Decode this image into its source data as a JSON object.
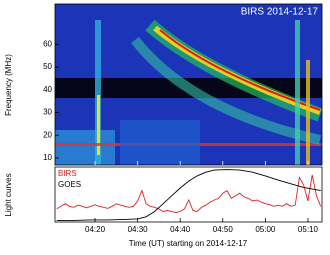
{
  "chart_data": {
    "type": "spectrogram-lightcurve",
    "title": "BIRS 2014-12-17",
    "ylabel": "Frequency (MHz)",
    "ylim": [
      6.9,
      77.7
    ],
    "yticks": [
      10,
      20,
      30,
      40,
      50,
      60
    ],
    "xlabel": "Time (UT) starting on 2014-12-17",
    "xlim": [
      250.6,
      313.3
    ],
    "xticks": [
      {
        "value": 260,
        "label": "04:20"
      },
      {
        "value": 270,
        "label": "04:30"
      },
      {
        "value": 280,
        "label": "04:40"
      },
      {
        "value": 290,
        "label": "04:50"
      },
      {
        "value": 300,
        "label": "05:00"
      },
      {
        "value": 310,
        "label": "05:10"
      }
    ],
    "lightcurve": {
      "ylabel": "Light curves",
      "ylim": [
        0,
        1.05
      ],
      "series": [
        {
          "name": "BIRS",
          "color": "#e02020",
          "x": [
            251,
            252,
            253,
            254,
            255,
            256,
            257,
            258,
            259,
            260,
            261,
            262,
            263,
            264,
            265,
            266,
            267,
            268,
            269,
            270,
            271,
            272,
            273,
            274,
            275,
            276,
            277,
            278,
            279,
            280,
            281,
            282,
            283,
            284,
            285,
            286,
            287,
            288,
            289,
            290,
            291,
            292,
            293,
            294,
            295,
            296,
            297,
            298,
            299,
            300,
            301,
            302,
            303,
            304,
            305,
            306,
            307,
            308,
            309,
            310,
            311,
            312,
            313
          ],
          "values": [
            0.25,
            0.3,
            0.35,
            0.3,
            0.28,
            0.32,
            0.3,
            0.27,
            0.3,
            0.33,
            0.3,
            0.28,
            0.26,
            0.3,
            0.35,
            0.32,
            0.3,
            0.28,
            0.3,
            0.4,
            0.6,
            0.35,
            0.3,
            0.28,
            0.25,
            0.2,
            0.22,
            0.2,
            0.18,
            0.2,
            0.25,
            0.42,
            0.22,
            0.2,
            0.28,
            0.32,
            0.38,
            0.42,
            0.45,
            0.55,
            0.6,
            0.45,
            0.5,
            0.55,
            0.48,
            0.45,
            0.4,
            0.42,
            0.38,
            0.35,
            0.33,
            0.3,
            0.32,
            0.3,
            0.35,
            0.3,
            0.32,
            0.85,
            0.7,
            0.4,
            0.9,
            0.5,
            0.3
          ]
        },
        {
          "name": "GOES",
          "color": "#000000",
          "x": [
            251,
            255,
            259,
            263,
            267,
            270,
            272,
            274,
            276,
            278,
            280,
            282,
            284,
            286,
            288,
            291,
            294,
            297,
            300,
            303,
            306,
            309,
            313
          ],
          "values": [
            0.03,
            0.03,
            0.04,
            0.04,
            0.05,
            0.06,
            0.1,
            0.2,
            0.35,
            0.5,
            0.65,
            0.78,
            0.88,
            0.95,
            0.99,
            1.0,
            0.99,
            0.95,
            0.88,
            0.8,
            0.73,
            0.66,
            0.6
          ]
        }
      ]
    }
  }
}
